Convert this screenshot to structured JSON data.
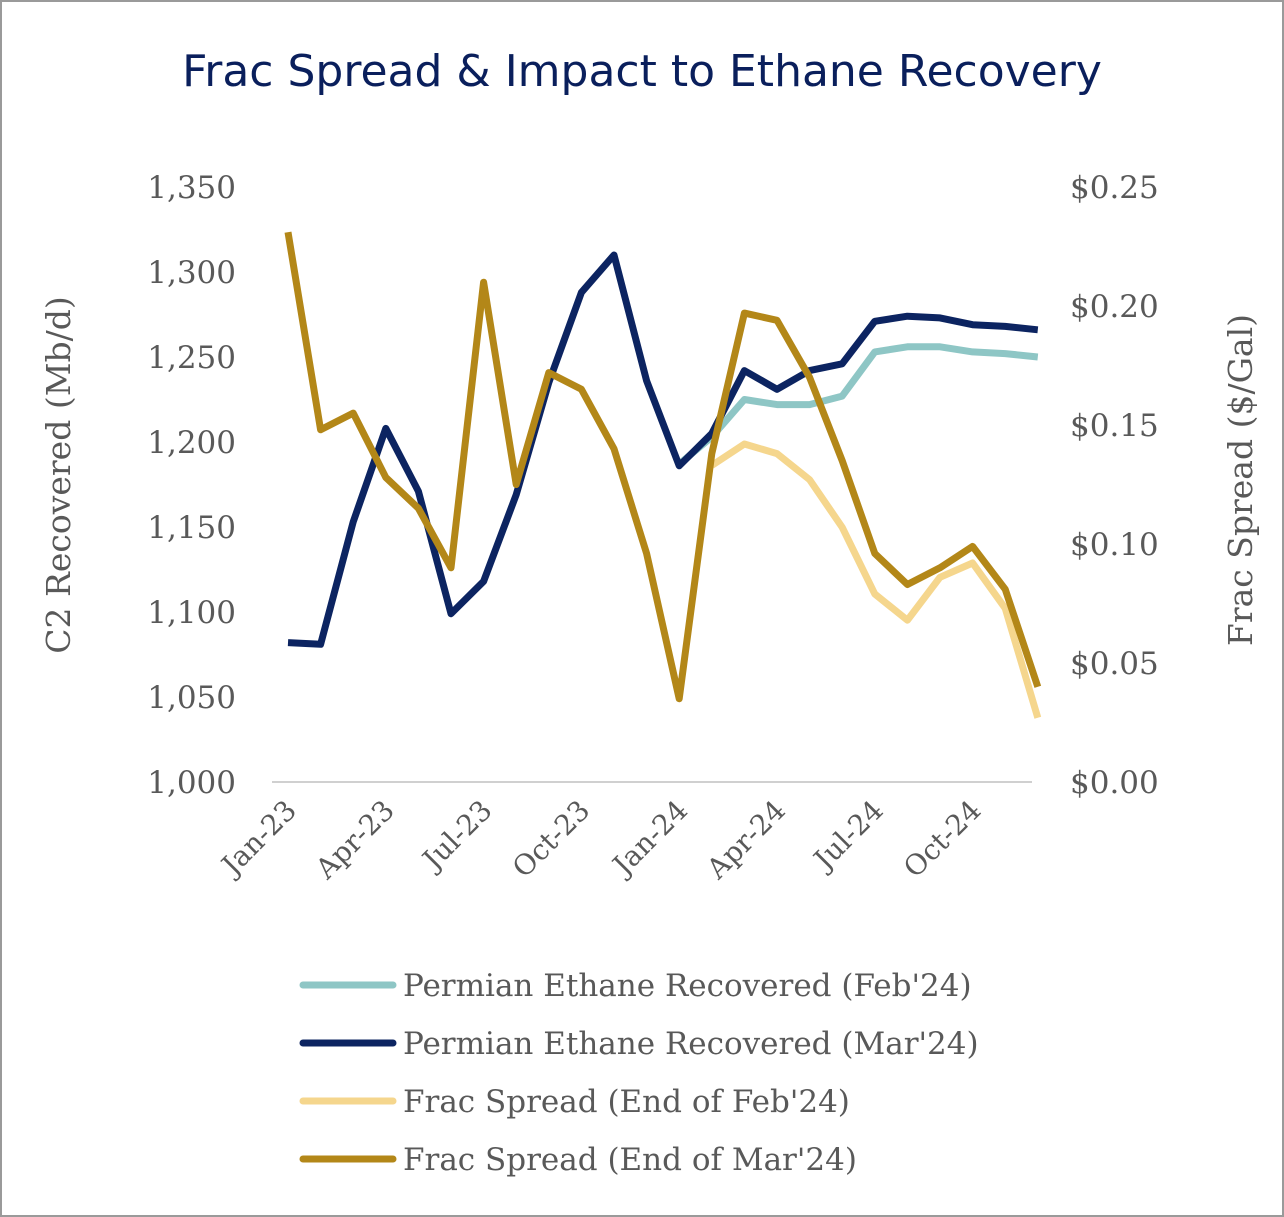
{
  "chart_data": {
    "type": "line",
    "title": "Frac Spread & Impact to Ethane Recovery",
    "ylabel_left": "C2 Recovered (Mb/d)",
    "ylabel_right": "Frac Spread ($/Gal)",
    "ylim_left": [
      1000,
      1350
    ],
    "ylim_right": [
      0,
      0.25
    ],
    "left_ticks": [
      "1,000",
      "1,050",
      "1,100",
      "1,150",
      "1,200",
      "1,250",
      "1,300",
      "1,350"
    ],
    "right_ticks": [
      "$0.00",
      "$0.05",
      "$0.10",
      "$0.15",
      "$0.20",
      "$0.25"
    ],
    "x_tick_labels": [
      "Jan-23",
      "Apr-23",
      "Jul-23",
      "Oct-23",
      "Jan-24",
      "Apr-24",
      "Jul-24",
      "Oct-24"
    ],
    "grid": false,
    "legend_position": "bottom",
    "x": [
      "Jan-23",
      "Feb-23",
      "Mar-23",
      "Apr-23",
      "May-23",
      "Jun-23",
      "Jul-23",
      "Aug-23",
      "Sep-23",
      "Oct-23",
      "Nov-23",
      "Dec-23",
      "Jan-24",
      "Feb-24",
      "Mar-24",
      "Apr-24",
      "May-24",
      "Jun-24",
      "Jul-24",
      "Aug-24",
      "Sep-24",
      "Oct-24",
      "Nov-24",
      "Dec-24"
    ],
    "series": [
      {
        "name": "Permian Ethane Recovered (Feb'24)",
        "axis": "left",
        "color": "#8ec6c5",
        "values": [
          null,
          null,
          null,
          null,
          null,
          null,
          null,
          null,
          null,
          null,
          null,
          null,
          1187,
          1203,
          1225,
          1222,
          1222,
          1227,
          1253,
          1256,
          1256,
          1253,
          1252,
          1250
        ]
      },
      {
        "name": "Permian Ethane Recovered (Mar'24)",
        "axis": "left",
        "color": "#0c2461",
        "values": [
          1082,
          1081,
          1153,
          1208,
          1171,
          1099,
          1118,
          1169,
          1235,
          1288,
          1310,
          1236,
          1186,
          1205,
          1242,
          1231,
          1242,
          1246,
          1271,
          1274,
          1273,
          1269,
          1268,
          1266
        ]
      },
      {
        "name": "Frac Spread (End of Feb'24)",
        "axis": "right",
        "color": "#f5d68d",
        "values": [
          null,
          null,
          null,
          null,
          null,
          null,
          null,
          null,
          null,
          null,
          null,
          null,
          null,
          0.133,
          0.142,
          0.138,
          0.127,
          0.107,
          0.079,
          0.068,
          0.086,
          0.092,
          0.073,
          0.027
        ]
      },
      {
        "name": "Frac Spread (End of Mar'24)",
        "axis": "right",
        "color": "#b38718",
        "values": [
          0.231,
          0.148,
          0.155,
          0.128,
          0.115,
          0.09,
          0.21,
          0.125,
          0.172,
          0.165,
          0.14,
          0.096,
          0.035,
          0.138,
          0.197,
          0.194,
          0.17,
          0.135,
          0.096,
          0.083,
          0.09,
          0.099,
          0.081,
          0.04
        ]
      }
    ]
  }
}
